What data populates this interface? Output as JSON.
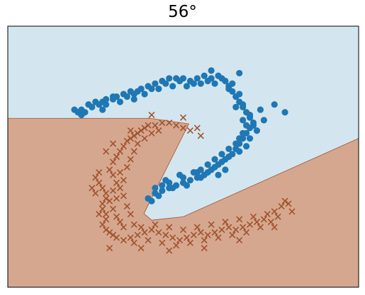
{
  "chart_data": {
    "type": "scatter",
    "title": "56°",
    "xlabel": "",
    "ylabel": "",
    "grid": false,
    "axes_ticks": false,
    "region_colors": {
      "class_a": "#d3e6ef",
      "class_b": "#d6a78f",
      "boundary": "#a0522d"
    },
    "decision_boundary": [
      [
        0.0,
        0.647
      ],
      [
        0.405,
        0.647
      ],
      [
        0.516,
        0.626
      ],
      [
        0.388,
        0.282
      ],
      [
        0.41,
        0.257
      ],
      [
        0.5,
        0.27
      ],
      [
        1.0,
        0.57
      ]
    ],
    "series": [
      {
        "marker": "circle",
        "color": "#1f77b4",
        "points": [
          [
            0.19,
            0.68
          ],
          [
            0.2,
            0.67
          ],
          [
            0.21,
            0.68
          ],
          [
            0.22,
            0.67
          ],
          [
            0.24,
            0.69
          ],
          [
            0.26,
            0.7
          ],
          [
            0.27,
            0.71
          ],
          [
            0.28,
            0.7
          ],
          [
            0.3,
            0.72
          ],
          [
            0.31,
            0.73
          ],
          [
            0.33,
            0.74
          ],
          [
            0.35,
            0.75
          ],
          [
            0.36,
            0.74
          ],
          [
            0.38,
            0.76
          ],
          [
            0.4,
            0.77
          ],
          [
            0.42,
            0.78
          ],
          [
            0.44,
            0.79
          ],
          [
            0.46,
            0.8
          ],
          [
            0.48,
            0.8
          ],
          [
            0.5,
            0.8
          ],
          [
            0.52,
            0.79
          ],
          [
            0.54,
            0.8
          ],
          [
            0.56,
            0.81
          ],
          [
            0.58,
            0.8
          ],
          [
            0.6,
            0.81
          ],
          [
            0.62,
            0.79
          ],
          [
            0.63,
            0.77
          ],
          [
            0.64,
            0.75
          ],
          [
            0.65,
            0.73
          ],
          [
            0.66,
            0.71
          ],
          [
            0.67,
            0.69
          ],
          [
            0.68,
            0.67
          ],
          [
            0.69,
            0.65
          ],
          [
            0.7,
            0.63
          ],
          [
            0.69,
            0.61
          ],
          [
            0.68,
            0.59
          ],
          [
            0.67,
            0.57
          ],
          [
            0.66,
            0.55
          ],
          [
            0.65,
            0.53
          ],
          [
            0.64,
            0.51
          ],
          [
            0.62,
            0.49
          ],
          [
            0.6,
            0.47
          ],
          [
            0.58,
            0.45
          ],
          [
            0.56,
            0.43
          ],
          [
            0.54,
            0.42
          ],
          [
            0.52,
            0.41
          ],
          [
            0.5,
            0.4
          ],
          [
            0.48,
            0.39
          ],
          [
            0.46,
            0.38
          ],
          [
            0.44,
            0.37
          ],
          [
            0.42,
            0.36
          ],
          [
            0.23,
            0.7
          ],
          [
            0.25,
            0.71
          ],
          [
            0.28,
            0.72
          ],
          [
            0.3,
            0.73
          ],
          [
            0.34,
            0.73
          ],
          [
            0.37,
            0.75
          ],
          [
            0.41,
            0.76
          ],
          [
            0.45,
            0.78
          ],
          [
            0.49,
            0.79
          ],
          [
            0.53,
            0.78
          ],
          [
            0.57,
            0.79
          ],
          [
            0.61,
            0.8
          ],
          [
            0.64,
            0.78
          ],
          [
            0.66,
            0.74
          ],
          [
            0.67,
            0.7
          ],
          [
            0.69,
            0.66
          ],
          [
            0.7,
            0.62
          ],
          [
            0.71,
            0.6
          ],
          [
            0.69,
            0.57
          ],
          [
            0.68,
            0.54
          ],
          [
            0.66,
            0.52
          ],
          [
            0.63,
            0.5
          ],
          [
            0.61,
            0.48
          ],
          [
            0.59,
            0.46
          ],
          [
            0.57,
            0.44
          ],
          [
            0.55,
            0.42
          ],
          [
            0.51,
            0.39
          ],
          [
            0.47,
            0.38
          ],
          [
            0.43,
            0.35
          ],
          [
            0.66,
            0.82
          ],
          [
            0.58,
            0.83
          ],
          [
            0.72,
            0.68
          ],
          [
            0.73,
            0.64
          ],
          [
            0.62,
            0.45
          ],
          [
            0.6,
            0.43
          ],
          [
            0.54,
            0.44
          ],
          [
            0.5,
            0.42
          ],
          [
            0.46,
            0.4
          ],
          [
            0.44,
            0.39
          ],
          [
            0.4,
            0.34
          ],
          [
            0.21,
            0.66
          ],
          [
            0.27,
            0.68
          ],
          [
            0.32,
            0.71
          ],
          [
            0.36,
            0.72
          ],
          [
            0.39,
            0.74
          ],
          [
            0.43,
            0.76
          ],
          [
            0.47,
            0.77
          ],
          [
            0.51,
            0.77
          ],
          [
            0.55,
            0.78
          ],
          [
            0.59,
            0.78
          ],
          [
            0.63,
            0.76
          ],
          [
            0.65,
            0.69
          ],
          [
            0.67,
            0.64
          ],
          [
            0.68,
            0.62
          ],
          [
            0.67,
            0.59
          ],
          [
            0.66,
            0.57
          ],
          [
            0.65,
            0.55
          ],
          [
            0.63,
            0.53
          ],
          [
            0.61,
            0.51
          ],
          [
            0.59,
            0.49
          ],
          [
            0.57,
            0.47
          ],
          [
            0.55,
            0.45
          ],
          [
            0.53,
            0.44
          ],
          [
            0.49,
            0.43
          ],
          [
            0.45,
            0.41
          ],
          [
            0.42,
            0.38
          ],
          [
            0.41,
            0.33
          ],
          [
            0.79,
            0.67
          ],
          [
            0.76,
            0.7
          ]
        ]
      },
      {
        "marker": "x",
        "color": "#a0522d",
        "points": [
          [
            0.25,
            0.42
          ],
          [
            0.26,
            0.4
          ],
          [
            0.27,
            0.38
          ],
          [
            0.28,
            0.36
          ],
          [
            0.28,
            0.34
          ],
          [
            0.27,
            0.32
          ],
          [
            0.27,
            0.3
          ],
          [
            0.28,
            0.28
          ],
          [
            0.28,
            0.26
          ],
          [
            0.27,
            0.24
          ],
          [
            0.28,
            0.22
          ],
          [
            0.29,
            0.21
          ],
          [
            0.3,
            0.2
          ],
          [
            0.31,
            0.19
          ],
          [
            0.29,
            0.45
          ],
          [
            0.3,
            0.48
          ],
          [
            0.31,
            0.5
          ],
          [
            0.32,
            0.52
          ],
          [
            0.33,
            0.54
          ],
          [
            0.34,
            0.56
          ],
          [
            0.35,
            0.57
          ],
          [
            0.36,
            0.58
          ],
          [
            0.37,
            0.59
          ],
          [
            0.38,
            0.6
          ],
          [
            0.39,
            0.61
          ],
          [
            0.4,
            0.62
          ],
          [
            0.42,
            0.62
          ],
          [
            0.44,
            0.63
          ],
          [
            0.46,
            0.63
          ],
          [
            0.48,
            0.62
          ],
          [
            0.5,
            0.61
          ],
          [
            0.52,
            0.6
          ],
          [
            0.54,
            0.61
          ],
          [
            0.33,
            0.18
          ],
          [
            0.35,
            0.19
          ],
          [
            0.37,
            0.2
          ],
          [
            0.39,
            0.21
          ],
          [
            0.41,
            0.22
          ],
          [
            0.43,
            0.21
          ],
          [
            0.45,
            0.2
          ],
          [
            0.47,
            0.19
          ],
          [
            0.49,
            0.18
          ],
          [
            0.51,
            0.19
          ],
          [
            0.53,
            0.2
          ],
          [
            0.55,
            0.21
          ],
          [
            0.57,
            0.2
          ],
          [
            0.59,
            0.21
          ],
          [
            0.61,
            0.22
          ],
          [
            0.63,
            0.23
          ],
          [
            0.65,
            0.22
          ],
          [
            0.67,
            0.23
          ],
          [
            0.69,
            0.24
          ],
          [
            0.71,
            0.25
          ],
          [
            0.73,
            0.26
          ],
          [
            0.74,
            0.28
          ],
          [
            0.76,
            0.29
          ],
          [
            0.78,
            0.31
          ],
          [
            0.79,
            0.33
          ],
          [
            0.8,
            0.32
          ],
          [
            0.3,
            0.43
          ],
          [
            0.31,
            0.4
          ],
          [
            0.3,
            0.37
          ],
          [
            0.29,
            0.33
          ],
          [
            0.3,
            0.3
          ],
          [
            0.31,
            0.27
          ],
          [
            0.32,
            0.25
          ],
          [
            0.33,
            0.23
          ],
          [
            0.34,
            0.46
          ],
          [
            0.35,
            0.49
          ],
          [
            0.36,
            0.52
          ],
          [
            0.37,
            0.55
          ],
          [
            0.39,
            0.57
          ],
          [
            0.41,
            0.59
          ],
          [
            0.43,
            0.6
          ],
          [
            0.26,
            0.44
          ],
          [
            0.25,
            0.36
          ],
          [
            0.26,
            0.28
          ],
          [
            0.36,
            0.17
          ],
          [
            0.4,
            0.18
          ],
          [
            0.44,
            0.17
          ],
          [
            0.48,
            0.16
          ],
          [
            0.52,
            0.17
          ],
          [
            0.56,
            0.18
          ],
          [
            0.6,
            0.19
          ],
          [
            0.64,
            0.2
          ],
          [
            0.68,
            0.21
          ],
          [
            0.72,
            0.23
          ],
          [
            0.75,
            0.25
          ],
          [
            0.77,
            0.27
          ],
          [
            0.5,
            0.65
          ],
          [
            0.55,
            0.58
          ],
          [
            0.33,
            0.35
          ],
          [
            0.34,
            0.31
          ],
          [
            0.35,
            0.28
          ],
          [
            0.36,
            0.24
          ],
          [
            0.38,
            0.23
          ],
          [
            0.42,
            0.24
          ],
          [
            0.46,
            0.23
          ],
          [
            0.5,
            0.22
          ],
          [
            0.54,
            0.23
          ],
          [
            0.58,
            0.24
          ],
          [
            0.62,
            0.25
          ],
          [
            0.66,
            0.26
          ],
          [
            0.7,
            0.27
          ],
          [
            0.32,
            0.44
          ],
          [
            0.33,
            0.41
          ],
          [
            0.32,
            0.38
          ],
          [
            0.31,
            0.34
          ],
          [
            0.24,
            0.38
          ],
          [
            0.29,
            0.15
          ],
          [
            0.38,
            0.15
          ],
          [
            0.46,
            0.14
          ],
          [
            0.56,
            0.15
          ],
          [
            0.66,
            0.18
          ],
          [
            0.76,
            0.23
          ],
          [
            0.81,
            0.29
          ],
          [
            0.28,
            0.52
          ],
          [
            0.3,
            0.55
          ],
          [
            0.35,
            0.6
          ],
          [
            0.41,
            0.66
          ]
        ]
      }
    ]
  }
}
